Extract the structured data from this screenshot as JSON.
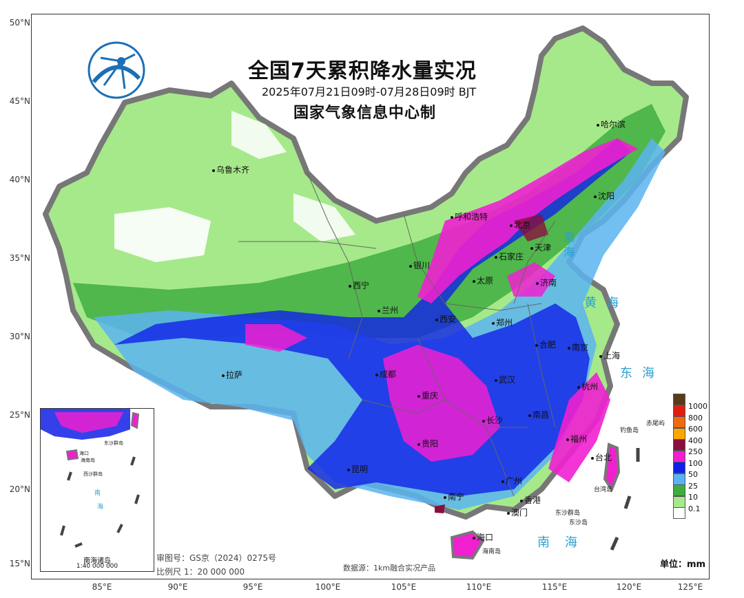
{
  "map": {
    "title": "全国7天累积降水量实况",
    "subtitle": "2025年07月21日09时-07月28日09时 BJT",
    "agency": "国家气象信息中心制",
    "lat_ticks": [
      "50°N",
      "45°N",
      "40°N",
      "35°N",
      "30°N",
      "25°N",
      "20°N",
      "15°N"
    ],
    "lon_ticks": [
      "85°E",
      "90°E",
      "95°E",
      "100°E",
      "105°E",
      "110°E",
      "115°E",
      "120°E",
      "125°E"
    ],
    "cities": {
      "urumqi": "乌鲁木齐",
      "harbin": "哈尔滨",
      "shenyang": "沈阳",
      "hohhot": "呼和浩特",
      "beijing": "北京",
      "tianjin": "天津",
      "shijiazhuang": "石家庄",
      "yinchuan": "银川",
      "taiyuan": "太原",
      "jinan": "济南",
      "xining": "西宁",
      "lanzhou": "兰州",
      "xian": "西安",
      "zhengzhou": "郑州",
      "hefei": "合肥",
      "nanjing": "南京",
      "shanghai": "上海",
      "lhasa": "拉萨",
      "chengdu": "成都",
      "wuhan": "武汉",
      "chongqing": "重庆",
      "nanchang": "南昌",
      "changsha": "长沙",
      "guiyang": "贵阳",
      "fuzhou": "福州",
      "taibei": "台北",
      "kunming": "昆明",
      "guangzhou": "广州",
      "nanning": "南宁",
      "xianggang": "香港",
      "aomen": "澳门",
      "haikou": "海口",
      "hangzhou": "杭州"
    },
    "seas": {
      "bohai": "渤海",
      "huanghai": "黄海",
      "donghai": "东海",
      "nanhai": "南海"
    },
    "islands": {
      "taiwan": "台湾岛",
      "hainan": "海南岛",
      "diaoyu": "钓鱼岛",
      "chiwei": "赤尾屿",
      "dongsha_qundao": "东沙群岛",
      "dongsha_dao": "东沙岛"
    },
    "inset": {
      "title": "南海诸岛",
      "scale": "1:40 000 000",
      "labels": {
        "haikou": "海口",
        "hainan": "海南岛",
        "dongsha": "东沙群岛",
        "xisha": "西沙群岛",
        "nan": "南",
        "hai": "海"
      }
    },
    "review_number": "审图号：GS京（2024）0275号",
    "scale": "比例尺 1：20 000 000",
    "source": "数据源：1km融合实况产品",
    "unit": "单位：mm",
    "legend": [
      {
        "label": "1000",
        "color": "#5a3a1a"
      },
      {
        "label": "800",
        "color": "#e01e10"
      },
      {
        "label": "600",
        "color": "#f06a10"
      },
      {
        "label": "400",
        "color": "#f8a800"
      },
      {
        "label": "250",
        "color": "#8a0f3c"
      },
      {
        "label": "100",
        "color": "#f020d0"
      },
      {
        "label": "50",
        "color": "#1020e8"
      },
      {
        "label": "25",
        "color": "#5ab4f0"
      },
      {
        "label": "10",
        "color": "#3fae3f"
      },
      {
        "label": "0.1",
        "color": "#a6e98a"
      },
      {
        "label": "",
        "color": "#ffffff"
      }
    ]
  }
}
